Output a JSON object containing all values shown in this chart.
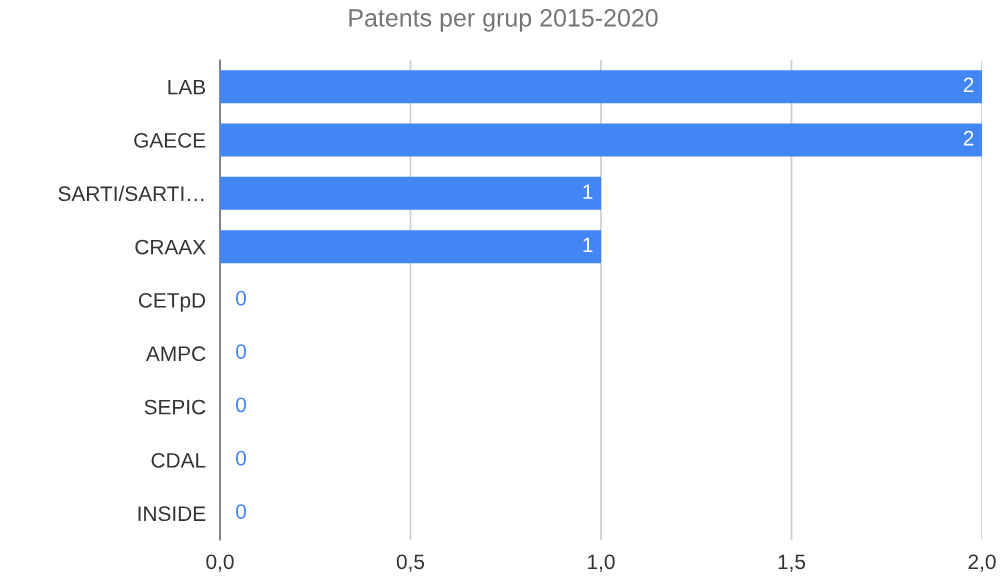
{
  "chart_data": {
    "type": "bar",
    "orientation": "horizontal",
    "title": "Patents per grup 2015-2020",
    "categories": [
      "LAB",
      "GAECE",
      "SARTI/SARTI…",
      "CRAAX",
      "CETpD",
      "AMPC",
      "SEPIC",
      "CDAL",
      "INSIDE"
    ],
    "values": [
      2,
      2,
      1,
      1,
      0,
      0,
      0,
      0,
      0
    ],
    "color": "#4285f4",
    "xlim": [
      0,
      2
    ],
    "xticks": [
      {
        "value": 0,
        "label": "0,0"
      },
      {
        "value": 0.5,
        "label": "0,5"
      },
      {
        "value": 1,
        "label": "1,0"
      },
      {
        "value": 1.5,
        "label": "1,5"
      },
      {
        "value": 2,
        "label": "2,0"
      }
    ],
    "grid": "x",
    "data_labels": true
  }
}
